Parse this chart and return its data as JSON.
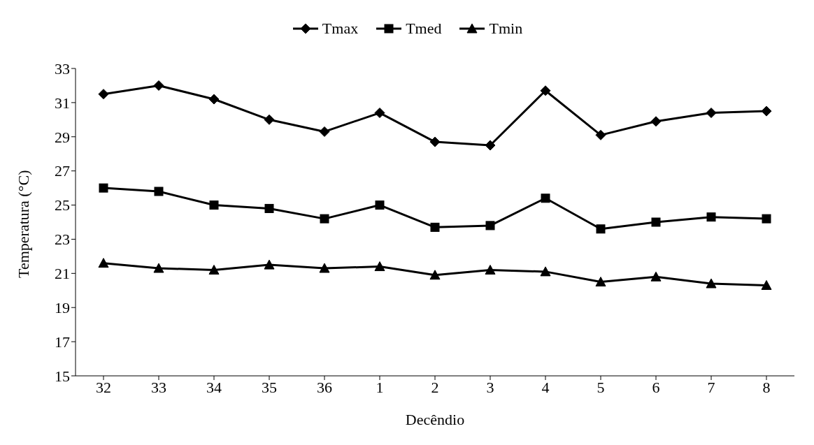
{
  "chart_data": {
    "type": "line",
    "xlabel": "Decêndio",
    "ylabel": "Temperatura (°C)",
    "categories": [
      "32",
      "33",
      "34",
      "35",
      "36",
      "1",
      "2",
      "3",
      "4",
      "5",
      "6",
      "7",
      "8"
    ],
    "series": [
      {
        "name": "Tmax",
        "color": "#000000",
        "marker": "diamond",
        "values": [
          31.5,
          32.0,
          31.2,
          30.0,
          29.3,
          30.4,
          28.7,
          28.5,
          31.7,
          29.1,
          29.9,
          30.4,
          30.5
        ]
      },
      {
        "name": "Tmed",
        "color": "#000000",
        "marker": "square",
        "values": [
          26.0,
          25.8,
          25.0,
          24.8,
          24.2,
          25.0,
          23.7,
          23.8,
          25.4,
          23.6,
          24.0,
          24.3,
          24.2
        ]
      },
      {
        "name": "Tmin",
        "color": "#000000",
        "marker": "triangle",
        "values": [
          21.6,
          21.3,
          21.2,
          21.5,
          21.3,
          21.4,
          20.9,
          21.2,
          21.1,
          20.5,
          20.8,
          20.4,
          20.3
        ]
      }
    ],
    "ylim": [
      15,
      33
    ],
    "yticks": [
      15,
      17,
      19,
      21,
      23,
      25,
      27,
      29,
      31,
      33
    ],
    "grid": false,
    "legend": "top",
    "line_style": "solid"
  }
}
